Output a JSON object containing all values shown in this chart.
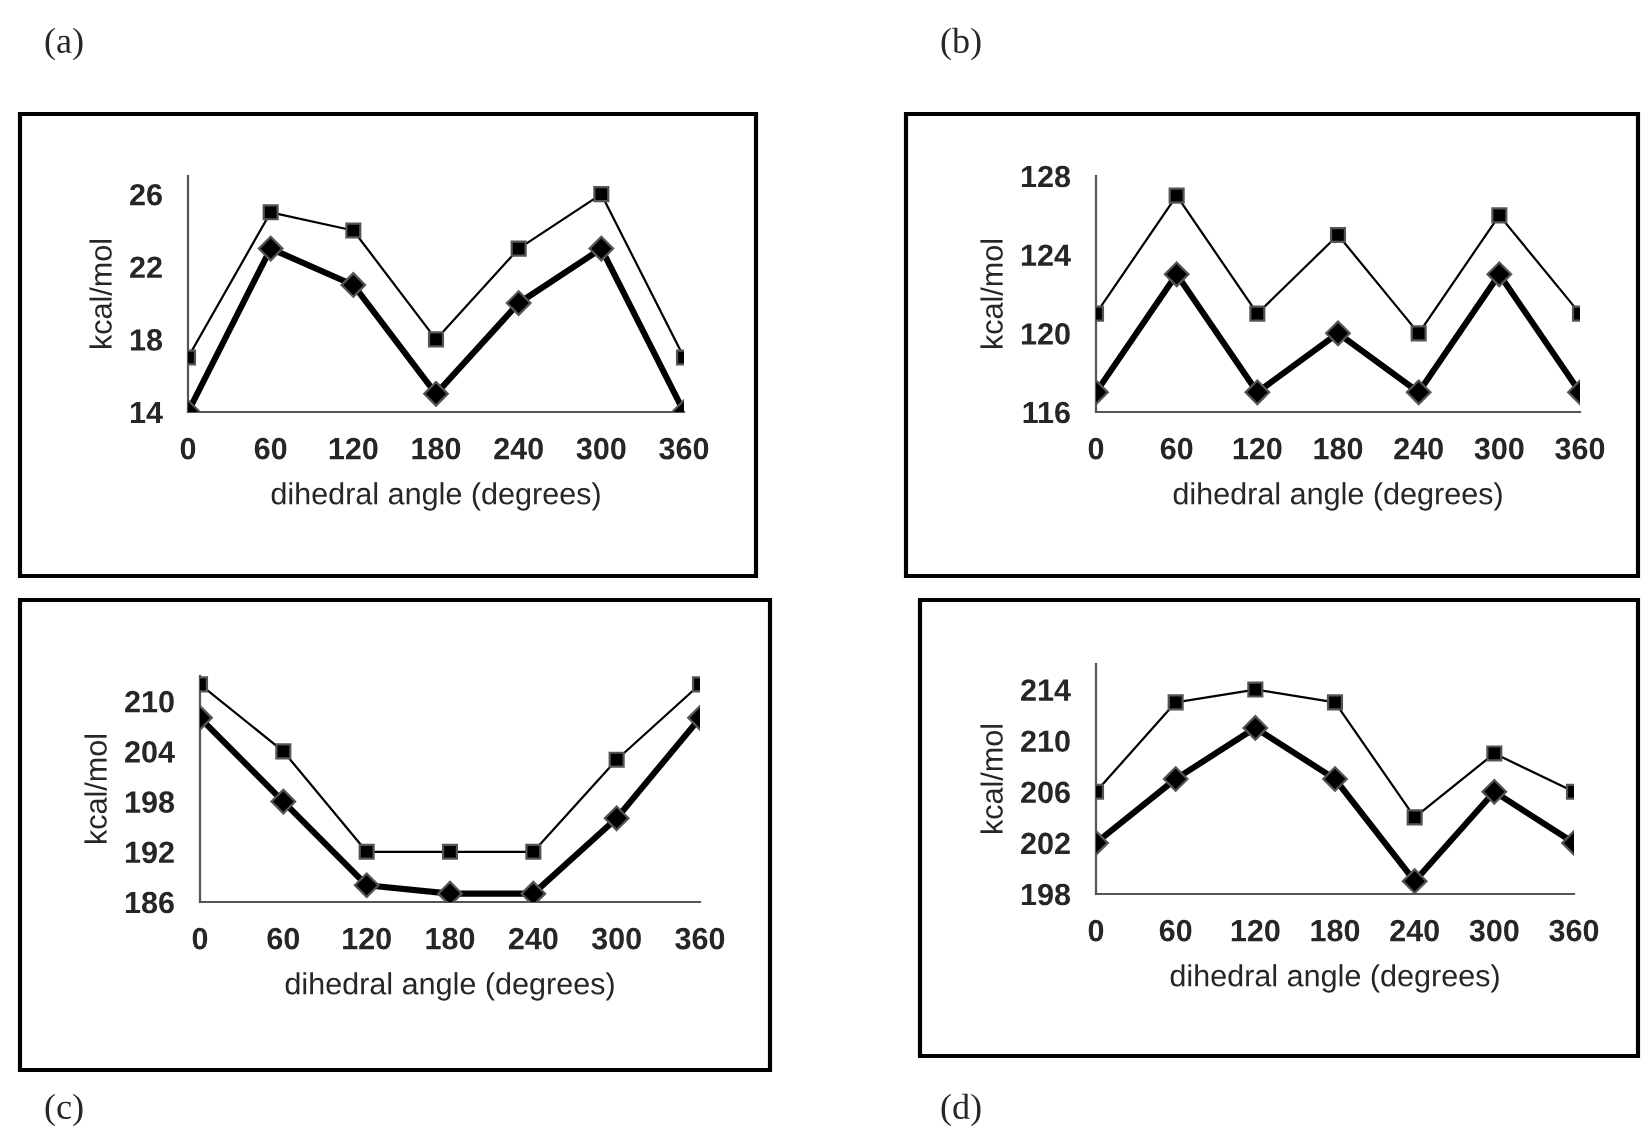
{
  "chart_data": [
    {
      "type": "line",
      "xlabel": "dihedral angle (degrees)",
      "ylabel": "kcal/mol",
      "annotations": [
        "(a)"
      ],
      "x": [
        0,
        60,
        120,
        180,
        240,
        300,
        360
      ],
      "xlim": [
        0,
        360
      ],
      "xticks": [
        0,
        60,
        120,
        180,
        240,
        300,
        360
      ],
      "ylim": [
        14,
        27
      ],
      "yticks": [
        14,
        18,
        22,
        26
      ],
      "grid": false,
      "legend": false,
      "line_style": "solid",
      "series": [
        {
          "color": "#000000",
          "marker": "square",
          "values": [
            17,
            25,
            24,
            18,
            23,
            26,
            17
          ]
        },
        {
          "color": "#000000",
          "marker": "diamond",
          "values": [
            14,
            23,
            21,
            15,
            20,
            23,
            14
          ]
        }
      ]
    },
    {
      "type": "line",
      "xlabel": "dihedral angle (degrees)",
      "ylabel": "kcal/mol",
      "annotations": [
        "(b)"
      ],
      "x": [
        0,
        60,
        120,
        180,
        240,
        300,
        360
      ],
      "xlim": [
        0,
        360
      ],
      "xticks": [
        0,
        60,
        120,
        180,
        240,
        300,
        360
      ],
      "ylim": [
        116,
        128
      ],
      "yticks": [
        116,
        120,
        124,
        128
      ],
      "grid": false,
      "legend": false,
      "line_style": "solid",
      "series": [
        {
          "color": "#000000",
          "marker": "square",
          "values": [
            121,
            127,
            121,
            125,
            120,
            126,
            121
          ]
        },
        {
          "color": "#000000",
          "marker": "diamond",
          "values": [
            117,
            123,
            117,
            120,
            117,
            123,
            117
          ]
        }
      ]
    },
    {
      "type": "line",
      "xlabel": "dihedral angle (degrees)",
      "ylabel": "kcal/mol",
      "annotations": [
        "(c)"
      ],
      "x": [
        0,
        60,
        120,
        180,
        240,
        300,
        360
      ],
      "xlim": [
        0,
        360
      ],
      "xticks": [
        0,
        60,
        120,
        180,
        240,
        300,
        360
      ],
      "ylim": [
        186,
        213
      ],
      "yticks": [
        186,
        192,
        198,
        204,
        210
      ],
      "grid": false,
      "legend": false,
      "line_style": "solid",
      "series": [
        {
          "color": "#000000",
          "marker": "square",
          "values": [
            212,
            204,
            192,
            192,
            192,
            203,
            212
          ]
        },
        {
          "color": "#000000",
          "marker": "diamond",
          "values": [
            208,
            198,
            188,
            187,
            187,
            196,
            208
          ]
        }
      ]
    },
    {
      "type": "line",
      "xlabel": "dihedral angle (degrees)",
      "ylabel": "kcal/mol",
      "annotations": [
        "(d)"
      ],
      "x": [
        0,
        60,
        120,
        180,
        240,
        300,
        360
      ],
      "xlim": [
        0,
        360
      ],
      "xticks": [
        0,
        60,
        120,
        180,
        240,
        300,
        360
      ],
      "ylim": [
        198,
        216
      ],
      "yticks": [
        198,
        202,
        206,
        210,
        214
      ],
      "grid": false,
      "legend": false,
      "line_style": "solid",
      "series": [
        {
          "color": "#000000",
          "marker": "square",
          "values": [
            206,
            213,
            214,
            213,
            204,
            209,
            206
          ]
        },
        {
          "color": "#000000",
          "marker": "diamond",
          "values": [
            202,
            207,
            211,
            207,
            199,
            206,
            202
          ]
        }
      ]
    }
  ]
}
